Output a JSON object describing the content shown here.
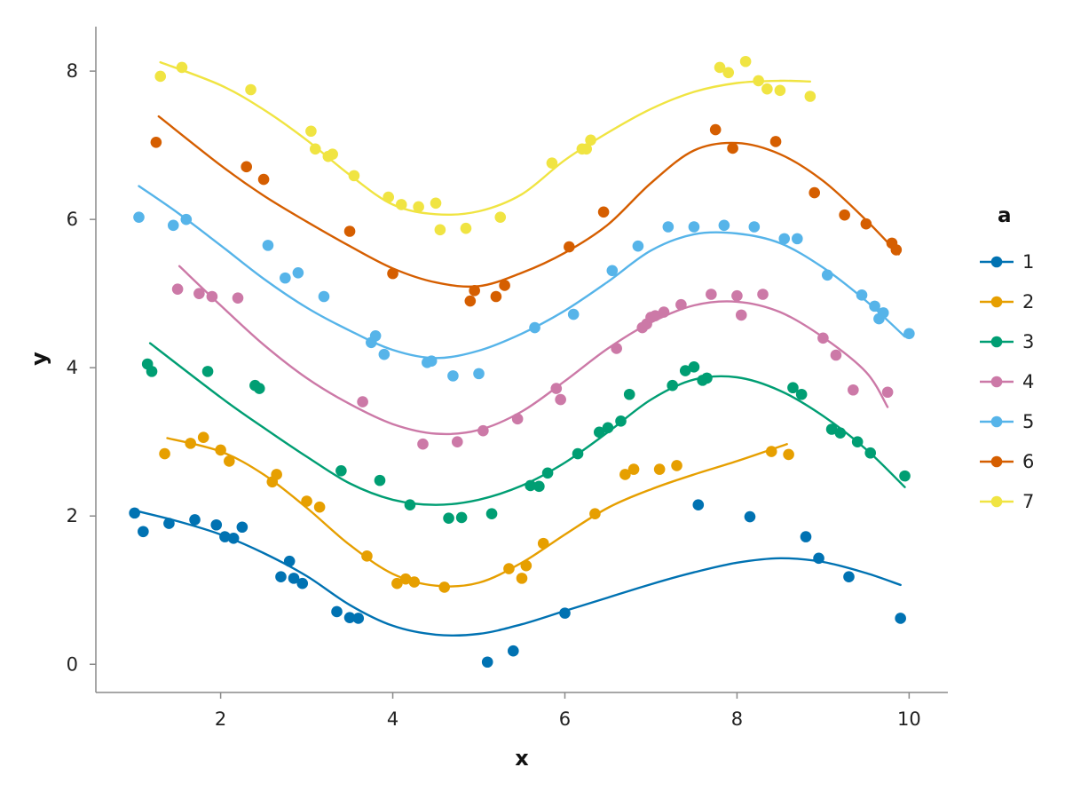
{
  "chart_data": {
    "type": "scatter",
    "title": "",
    "xlabel": "x",
    "ylabel": "y",
    "xlim": [
      0.55,
      10.45
    ],
    "ylim": [
      -0.38,
      8.6
    ],
    "xticks": [
      2,
      4,
      6,
      8,
      10
    ],
    "yticks": [
      0,
      2,
      4,
      6,
      8
    ],
    "grid": false,
    "legend": {
      "title": "a",
      "placement": "right"
    },
    "series": [
      {
        "name": "1",
        "color": "#0072B2",
        "points": [
          [
            1.0,
            2.04
          ],
          [
            1.1,
            1.79
          ],
          [
            1.4,
            1.9
          ],
          [
            1.7,
            1.95
          ],
          [
            1.95,
            1.88
          ],
          [
            2.05,
            1.72
          ],
          [
            2.15,
            1.7
          ],
          [
            2.25,
            1.85
          ],
          [
            2.7,
            1.18
          ],
          [
            2.8,
            1.39
          ],
          [
            2.85,
            1.16
          ],
          [
            2.95,
            1.09
          ],
          [
            3.35,
            0.71
          ],
          [
            3.5,
            0.63
          ],
          [
            3.6,
            0.62
          ],
          [
            5.1,
            0.03
          ],
          [
            5.4,
            0.18
          ],
          [
            6.0,
            0.69
          ],
          [
            7.55,
            2.15
          ],
          [
            8.15,
            1.99
          ],
          [
            8.8,
            1.72
          ],
          [
            8.95,
            1.43
          ],
          [
            9.3,
            1.18
          ],
          [
            9.9,
            0.62
          ]
        ],
        "fit": [
          [
            1.05,
            2.06
          ],
          [
            1.5,
            1.93
          ],
          [
            2.0,
            1.75
          ],
          [
            2.5,
            1.5
          ],
          [
            3.0,
            1.19
          ],
          [
            3.5,
            0.8
          ],
          [
            4.0,
            0.52
          ],
          [
            4.5,
            0.4
          ],
          [
            5.0,
            0.41
          ],
          [
            5.5,
            0.54
          ],
          [
            6.0,
            0.72
          ],
          [
            6.5,
            0.9
          ],
          [
            7.0,
            1.08
          ],
          [
            7.5,
            1.24
          ],
          [
            8.0,
            1.37
          ],
          [
            8.5,
            1.43
          ],
          [
            9.0,
            1.38
          ],
          [
            9.5,
            1.23
          ],
          [
            9.9,
            1.07
          ]
        ]
      },
      {
        "name": "2",
        "color": "#E69F00",
        "points": [
          [
            1.35,
            2.84
          ],
          [
            1.65,
            2.98
          ],
          [
            1.8,
            3.06
          ],
          [
            2.0,
            2.89
          ],
          [
            2.1,
            2.74
          ],
          [
            2.6,
            2.46
          ],
          [
            2.65,
            2.56
          ],
          [
            3.0,
            2.2
          ],
          [
            3.15,
            2.12
          ],
          [
            3.7,
            1.46
          ],
          [
            4.05,
            1.09
          ],
          [
            4.15,
            1.15
          ],
          [
            4.25,
            1.11
          ],
          [
            4.6,
            1.04
          ],
          [
            5.35,
            1.29
          ],
          [
            5.5,
            1.16
          ],
          [
            5.55,
            1.33
          ],
          [
            5.75,
            1.63
          ],
          [
            6.35,
            2.03
          ],
          [
            6.7,
            2.56
          ],
          [
            6.8,
            2.63
          ],
          [
            7.1,
            2.63
          ],
          [
            7.3,
            2.68
          ],
          [
            8.4,
            2.87
          ],
          [
            8.6,
            2.83
          ]
        ],
        "fit": [
          [
            1.38,
            3.05
          ],
          [
            2.0,
            2.87
          ],
          [
            2.5,
            2.56
          ],
          [
            3.0,
            2.11
          ],
          [
            3.5,
            1.61
          ],
          [
            4.0,
            1.22
          ],
          [
            4.5,
            1.06
          ],
          [
            5.0,
            1.1
          ],
          [
            5.5,
            1.37
          ],
          [
            6.0,
            1.75
          ],
          [
            6.5,
            2.11
          ],
          [
            7.0,
            2.36
          ],
          [
            7.5,
            2.56
          ],
          [
            8.0,
            2.74
          ],
          [
            8.58,
            2.97
          ]
        ]
      },
      {
        "name": "3",
        "color": "#009E73",
        "points": [
          [
            1.15,
            4.05
          ],
          [
            1.2,
            3.95
          ],
          [
            1.85,
            3.95
          ],
          [
            2.4,
            3.76
          ],
          [
            2.45,
            3.72
          ],
          [
            3.4,
            2.61
          ],
          [
            3.85,
            2.48
          ],
          [
            4.2,
            2.15
          ],
          [
            4.65,
            1.97
          ],
          [
            4.8,
            1.98
          ],
          [
            5.15,
            2.03
          ],
          [
            5.6,
            2.41
          ],
          [
            5.7,
            2.4
          ],
          [
            5.8,
            2.58
          ],
          [
            6.15,
            2.84
          ],
          [
            6.4,
            3.13
          ],
          [
            6.5,
            3.19
          ],
          [
            6.65,
            3.28
          ],
          [
            6.75,
            3.64
          ],
          [
            7.25,
            3.76
          ],
          [
            7.4,
            3.96
          ],
          [
            7.5,
            4.01
          ],
          [
            7.6,
            3.83
          ],
          [
            7.65,
            3.86
          ],
          [
            8.65,
            3.73
          ],
          [
            8.75,
            3.64
          ],
          [
            9.1,
            3.17
          ],
          [
            9.2,
            3.12
          ],
          [
            9.4,
            3.0
          ],
          [
            9.55,
            2.85
          ],
          [
            9.95,
            2.54
          ]
        ],
        "fit": [
          [
            1.18,
            4.33
          ],
          [
            2.0,
            3.6
          ],
          [
            2.5,
            3.19
          ],
          [
            3.0,
            2.8
          ],
          [
            3.5,
            2.44
          ],
          [
            4.0,
            2.22
          ],
          [
            4.5,
            2.15
          ],
          [
            5.0,
            2.22
          ],
          [
            5.5,
            2.41
          ],
          [
            6.0,
            2.72
          ],
          [
            6.5,
            3.13
          ],
          [
            7.0,
            3.57
          ],
          [
            7.5,
            3.84
          ],
          [
            8.0,
            3.87
          ],
          [
            8.5,
            3.69
          ],
          [
            9.0,
            3.35
          ],
          [
            9.5,
            2.9
          ],
          [
            9.95,
            2.39
          ]
        ]
      },
      {
        "name": "4",
        "color": "#CC79A7",
        "points": [
          [
            1.5,
            5.06
          ],
          [
            1.75,
            5.0
          ],
          [
            1.9,
            4.96
          ],
          [
            2.2,
            4.94
          ],
          [
            3.65,
            3.54
          ],
          [
            4.35,
            2.97
          ],
          [
            4.75,
            3.0
          ],
          [
            5.05,
            3.15
          ],
          [
            5.45,
            3.31
          ],
          [
            5.9,
            3.72
          ],
          [
            5.95,
            3.57
          ],
          [
            6.6,
            4.26
          ],
          [
            6.9,
            4.54
          ],
          [
            6.95,
            4.59
          ],
          [
            7.0,
            4.68
          ],
          [
            7.05,
            4.7
          ],
          [
            7.15,
            4.75
          ],
          [
            7.35,
            4.85
          ],
          [
            7.7,
            4.99
          ],
          [
            8.0,
            4.97
          ],
          [
            8.05,
            4.71
          ],
          [
            8.3,
            4.99
          ],
          [
            9.0,
            4.4
          ],
          [
            9.15,
            4.17
          ],
          [
            9.35,
            3.7
          ],
          [
            9.75,
            3.67
          ]
        ],
        "fit": [
          [
            1.52,
            5.37
          ],
          [
            2.0,
            4.84
          ],
          [
            2.5,
            4.31
          ],
          [
            3.0,
            3.86
          ],
          [
            3.5,
            3.51
          ],
          [
            4.0,
            3.24
          ],
          [
            4.5,
            3.11
          ],
          [
            5.0,
            3.16
          ],
          [
            5.5,
            3.41
          ],
          [
            6.0,
            3.82
          ],
          [
            6.5,
            4.26
          ],
          [
            7.0,
            4.61
          ],
          [
            7.5,
            4.84
          ],
          [
            8.0,
            4.89
          ],
          [
            8.5,
            4.75
          ],
          [
            9.0,
            4.41
          ],
          [
            9.5,
            3.94
          ],
          [
            9.75,
            3.47
          ]
        ]
      },
      {
        "name": "5",
        "color": "#56B4E9",
        "points": [
          [
            1.05,
            6.03
          ],
          [
            1.45,
            5.92
          ],
          [
            1.6,
            6.0
          ],
          [
            2.55,
            5.65
          ],
          [
            2.75,
            5.21
          ],
          [
            2.9,
            5.28
          ],
          [
            3.2,
            4.96
          ],
          [
            3.75,
            4.34
          ],
          [
            3.8,
            4.43
          ],
          [
            3.9,
            4.18
          ],
          [
            4.4,
            4.07
          ],
          [
            4.45,
            4.09
          ],
          [
            4.7,
            3.89
          ],
          [
            5.0,
            3.92
          ],
          [
            5.65,
            4.54
          ],
          [
            6.1,
            4.72
          ],
          [
            6.55,
            5.31
          ],
          [
            6.85,
            5.64
          ],
          [
            7.2,
            5.9
          ],
          [
            7.5,
            5.9
          ],
          [
            7.85,
            5.92
          ],
          [
            8.2,
            5.9
          ],
          [
            8.55,
            5.74
          ],
          [
            8.7,
            5.74
          ],
          [
            9.05,
            5.25
          ],
          [
            9.45,
            4.98
          ],
          [
            9.6,
            4.83
          ],
          [
            9.65,
            4.66
          ],
          [
            9.7,
            4.74
          ],
          [
            10.0,
            4.46
          ]
        ],
        "fit": [
          [
            1.05,
            6.45
          ],
          [
            1.5,
            6.09
          ],
          [
            2.0,
            5.65
          ],
          [
            2.5,
            5.2
          ],
          [
            3.0,
            4.81
          ],
          [
            3.5,
            4.5
          ],
          [
            4.0,
            4.24
          ],
          [
            4.5,
            4.13
          ],
          [
            5.0,
            4.23
          ],
          [
            5.5,
            4.46
          ],
          [
            6.0,
            4.77
          ],
          [
            6.5,
            5.16
          ],
          [
            7.0,
            5.58
          ],
          [
            7.5,
            5.8
          ],
          [
            8.0,
            5.81
          ],
          [
            8.5,
            5.68
          ],
          [
            9.0,
            5.35
          ],
          [
            9.5,
            4.9
          ],
          [
            9.95,
            4.42
          ]
        ]
      },
      {
        "name": "6",
        "color": "#D55E00",
        "points": [
          [
            1.25,
            7.04
          ],
          [
            2.3,
            6.71
          ],
          [
            2.5,
            6.54
          ],
          [
            3.5,
            5.84
          ],
          [
            4.0,
            5.27
          ],
          [
            4.9,
            4.9
          ],
          [
            4.95,
            5.04
          ],
          [
            5.2,
            4.96
          ],
          [
            5.3,
            5.11
          ],
          [
            6.05,
            5.63
          ],
          [
            6.45,
            6.1
          ],
          [
            7.75,
            7.21
          ],
          [
            7.95,
            6.96
          ],
          [
            8.45,
            7.05
          ],
          [
            8.9,
            6.36
          ],
          [
            9.25,
            6.06
          ],
          [
            9.5,
            5.94
          ],
          [
            9.8,
            5.68
          ],
          [
            9.85,
            5.59
          ]
        ],
        "fit": [
          [
            1.28,
            7.39
          ],
          [
            2.0,
            6.73
          ],
          [
            2.5,
            6.32
          ],
          [
            3.0,
            5.97
          ],
          [
            3.5,
            5.64
          ],
          [
            4.0,
            5.34
          ],
          [
            4.5,
            5.15
          ],
          [
            5.0,
            5.1
          ],
          [
            5.5,
            5.28
          ],
          [
            6.0,
            5.55
          ],
          [
            6.5,
            5.93
          ],
          [
            7.0,
            6.49
          ],
          [
            7.5,
            6.93
          ],
          [
            8.0,
            7.03
          ],
          [
            8.5,
            6.88
          ],
          [
            9.0,
            6.52
          ],
          [
            9.5,
            5.99
          ],
          [
            9.88,
            5.53
          ]
        ]
      },
      {
        "name": "7",
        "color": "#F0E442",
        "points": [
          [
            1.3,
            7.93
          ],
          [
            1.55,
            8.05
          ],
          [
            2.35,
            7.75
          ],
          [
            3.05,
            7.19
          ],
          [
            3.1,
            6.95
          ],
          [
            3.25,
            6.85
          ],
          [
            3.3,
            6.88
          ],
          [
            3.55,
            6.59
          ],
          [
            3.95,
            6.3
          ],
          [
            4.1,
            6.2
          ],
          [
            4.3,
            6.17
          ],
          [
            4.5,
            6.22
          ],
          [
            4.55,
            5.86
          ],
          [
            4.85,
            5.88
          ],
          [
            5.25,
            6.03
          ],
          [
            5.85,
            6.76
          ],
          [
            6.2,
            6.95
          ],
          [
            6.25,
            6.95
          ],
          [
            6.3,
            7.07
          ],
          [
            7.8,
            8.05
          ],
          [
            7.9,
            7.98
          ],
          [
            8.1,
            8.13
          ],
          [
            8.25,
            7.87
          ],
          [
            8.35,
            7.76
          ],
          [
            8.5,
            7.74
          ],
          [
            8.85,
            7.66
          ]
        ],
        "fit": [
          [
            1.3,
            8.12
          ],
          [
            2.0,
            7.81
          ],
          [
            2.5,
            7.48
          ],
          [
            3.0,
            7.07
          ],
          [
            3.5,
            6.6
          ],
          [
            4.0,
            6.2
          ],
          [
            4.5,
            6.07
          ],
          [
            5.0,
            6.11
          ],
          [
            5.5,
            6.34
          ],
          [
            6.0,
            6.8
          ],
          [
            6.5,
            7.17
          ],
          [
            7.0,
            7.49
          ],
          [
            7.5,
            7.72
          ],
          [
            8.0,
            7.84
          ],
          [
            8.5,
            7.87
          ],
          [
            8.85,
            7.86
          ]
        ]
      }
    ]
  }
}
